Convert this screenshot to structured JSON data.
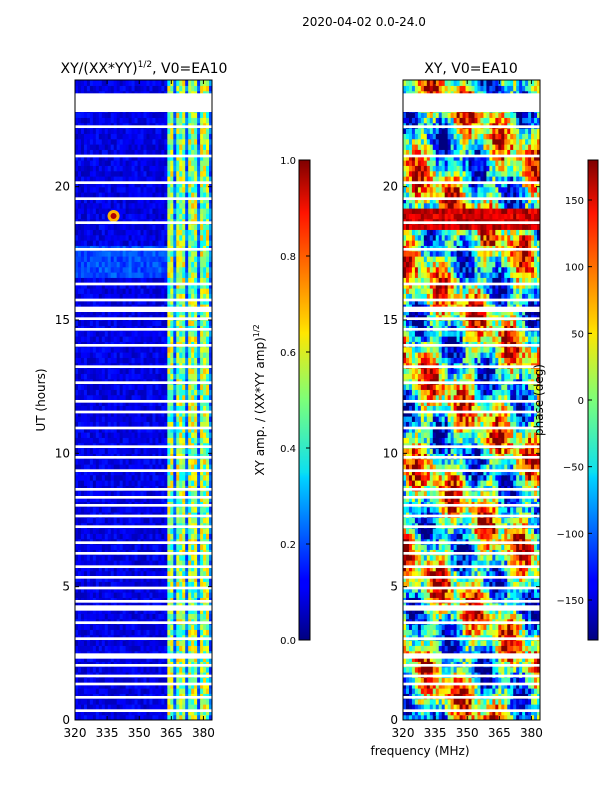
{
  "suptitle": "2020-04-02 0.0-24.0",
  "xlabel_shared": "frequency (MHz)",
  "chart_data": [
    {
      "type": "heatmap",
      "title": "XY/(XX*YY)",
      "title_exponent": "1/2",
      "title_suffix": ", V0=EA10",
      "ylabel": "UT (hours)",
      "xlim": [
        320,
        384
      ],
      "ylim": [
        0,
        24
      ],
      "x_ticks": [
        320,
        335,
        350,
        365,
        380
      ],
      "y_ticks": [
        0,
        5,
        10,
        15,
        20
      ],
      "colormap": "jet",
      "colorbar": {
        "label": "XY amp. / (XX*YY amp)",
        "label_exponent": "1/2",
        "range": [
          0.0,
          1.0
        ],
        "ticks": [
          "0.0",
          "0.2",
          "0.4",
          "0.6",
          "0.8",
          "1.0"
        ]
      },
      "blank_bands_hours": [
        [
          22.8,
          23.5
        ],
        [
          22.2,
          22.3
        ],
        [
          21.1,
          21.2
        ],
        [
          20.1,
          20.2
        ],
        [
          19.5,
          19.6
        ],
        [
          18.6,
          18.7
        ],
        [
          17.6,
          17.7
        ],
        [
          16.3,
          16.4
        ],
        [
          15.7,
          15.8
        ],
        [
          15.3,
          15.5
        ],
        [
          15.0,
          15.1
        ],
        [
          14.6,
          14.7
        ],
        [
          14.0,
          14.1
        ],
        [
          13.2,
          13.3
        ],
        [
          12.6,
          12.7
        ],
        [
          11.9,
          12.0
        ],
        [
          11.5,
          11.6
        ],
        [
          10.9,
          11.0
        ],
        [
          10.2,
          10.3
        ],
        [
          9.8,
          9.9
        ],
        [
          9.3,
          9.4
        ],
        [
          8.6,
          8.7
        ],
        [
          8.3,
          8.4
        ],
        [
          8.0,
          8.1
        ],
        [
          7.6,
          7.7
        ],
        [
          7.2,
          7.3
        ],
        [
          6.6,
          6.7
        ],
        [
          6.2,
          6.3
        ],
        [
          5.7,
          5.8
        ],
        [
          5.3,
          5.4
        ],
        [
          4.9,
          5.0
        ],
        [
          4.4,
          4.5
        ],
        [
          4.1,
          4.3
        ],
        [
          3.6,
          3.7
        ],
        [
          3.0,
          3.1
        ],
        [
          2.3,
          2.5
        ],
        [
          2.0,
          2.1
        ],
        [
          1.6,
          1.7
        ],
        [
          1.3,
          1.4
        ],
        [
          0.8,
          0.9
        ],
        [
          0.3,
          0.4
        ]
      ],
      "high_freq_band_mhz": [
        362,
        384
      ],
      "bright_point": {
        "freq_mhz": 338,
        "hour": 18.9
      }
    },
    {
      "type": "heatmap",
      "title": "XY, V0=EA10",
      "xlim": [
        320,
        384
      ],
      "ylim": [
        0,
        24
      ],
      "x_ticks": [
        320,
        335,
        350,
        365,
        380
      ],
      "y_ticks": [
        0,
        5,
        10,
        15,
        20
      ],
      "colormap": "jet",
      "colorbar": {
        "label": "phase (deg)",
        "range": [
          -180,
          180
        ],
        "ticks": [
          "150",
          "100",
          "50",
          "0",
          "−50",
          "−100",
          "−150"
        ],
        "tick_values": [
          150,
          100,
          50,
          0,
          -50,
          -100,
          -150
        ]
      },
      "blank_bands_hours": [
        [
          22.8,
          23.5
        ],
        [
          22.2,
          22.3
        ],
        [
          21.1,
          21.2
        ],
        [
          20.1,
          20.2
        ],
        [
          19.5,
          19.6
        ],
        [
          18.6,
          18.7
        ],
        [
          17.6,
          17.7
        ],
        [
          16.3,
          16.4
        ],
        [
          15.7,
          15.8
        ],
        [
          15.3,
          15.5
        ],
        [
          15.0,
          15.1
        ],
        [
          14.6,
          14.7
        ],
        [
          14.0,
          14.1
        ],
        [
          13.2,
          13.3
        ],
        [
          12.6,
          12.7
        ],
        [
          11.9,
          12.0
        ],
        [
          11.5,
          11.6
        ],
        [
          10.9,
          11.0
        ],
        [
          10.2,
          10.3
        ],
        [
          9.8,
          9.9
        ],
        [
          9.3,
          9.4
        ],
        [
          8.6,
          8.7
        ],
        [
          8.3,
          8.4
        ],
        [
          8.0,
          8.1
        ],
        [
          7.6,
          7.7
        ],
        [
          7.2,
          7.3
        ],
        [
          6.6,
          6.7
        ],
        [
          6.2,
          6.3
        ],
        [
          5.7,
          5.8
        ],
        [
          5.3,
          5.4
        ],
        [
          4.9,
          5.0
        ],
        [
          4.4,
          4.5
        ],
        [
          4.1,
          4.3
        ],
        [
          3.6,
          3.7
        ],
        [
          3.0,
          3.1
        ],
        [
          2.3,
          2.5
        ],
        [
          2.0,
          2.1
        ],
        [
          1.6,
          1.7
        ],
        [
          1.3,
          1.4
        ],
        [
          0.8,
          0.9
        ],
        [
          0.3,
          0.4
        ]
      ]
    }
  ]
}
